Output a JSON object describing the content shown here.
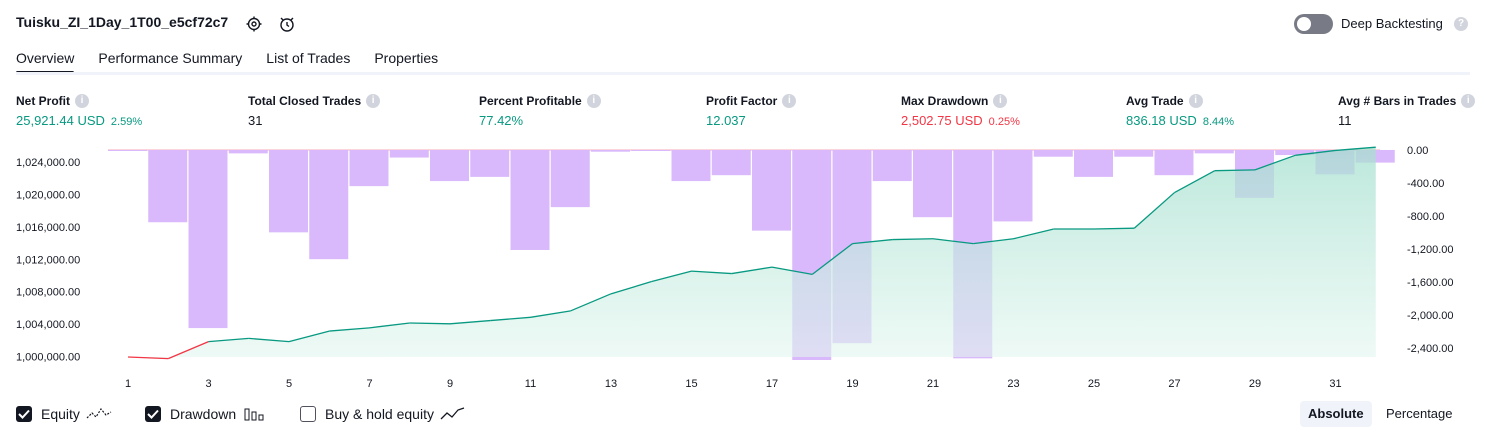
{
  "header": {
    "strategy_name": "Tuisku_ZI_1Day_1T00_e5cf72c7",
    "settings_icon": "gear-icon",
    "refresh_icon": "refresh-icon",
    "deep_backtesting_label": "Deep Backtesting",
    "deep_backtesting_on": false
  },
  "tabs": [
    "Overview",
    "Performance Summary",
    "List of Trades",
    "Properties"
  ],
  "active_tab": "Overview",
  "metrics": [
    {
      "label": "Net Profit",
      "value": "25,921.44 USD",
      "pct": "2.59%",
      "tone": "green"
    },
    {
      "label": "Total Closed Trades",
      "value": "31",
      "pct": "",
      "tone": "neutral"
    },
    {
      "label": "Percent Profitable",
      "value": "77.42%",
      "pct": "",
      "tone": "green"
    },
    {
      "label": "Profit Factor",
      "value": "12.037",
      "pct": "",
      "tone": "green"
    },
    {
      "label": "Max Drawdown",
      "value": "2,502.75 USD",
      "pct": "0.25%",
      "tone": "red"
    },
    {
      "label": "Avg Trade",
      "value": "836.18 USD",
      "pct": "8.44%",
      "tone": "green"
    },
    {
      "label": "Avg # Bars in Trades",
      "value": "11",
      "pct": "",
      "tone": "neutral"
    }
  ],
  "chart_data": {
    "type": "area",
    "x_ticks": [
      "1",
      "3",
      "5",
      "7",
      "9",
      "11",
      "13",
      "15",
      "17",
      "19",
      "21",
      "23",
      "25",
      "27",
      "29",
      "31"
    ],
    "left_axis": {
      "ticks": [
        "1,000,000.00",
        "1,004,000.00",
        "1,008,000.00",
        "1,012,000.00",
        "1,016,000.00",
        "1,020,000.00",
        "1,024,000.00"
      ],
      "ylim": [
        999000,
        1026000
      ]
    },
    "right_axis": {
      "ticks": [
        "0.00",
        "-400.00",
        "-800.00",
        "-1,200.00",
        "-1,600.00",
        "-2,000.00",
        "-2,400.00"
      ],
      "ylim": [
        -2600,
        0
      ]
    },
    "series": [
      {
        "name": "Equity",
        "x": [
          1,
          2,
          3,
          4,
          5,
          6,
          7,
          8,
          9,
          10,
          11,
          12,
          13,
          14,
          15,
          16,
          17,
          18,
          19,
          20,
          21,
          22,
          23,
          24,
          25,
          26,
          27,
          28,
          29,
          30,
          31,
          32
        ],
        "values": [
          1000000,
          999800,
          1001900,
          1002300,
          1001900,
          1003200,
          1003600,
          1004200,
          1004100,
          1004500,
          1004900,
          1005700,
          1007800,
          1009300,
          1010600,
          1010300,
          1011100,
          1010200,
          1014000,
          1014500,
          1014600,
          1014000,
          1014600,
          1015800,
          1015800,
          1015900,
          1020300,
          1023000,
          1023100,
          1024900,
          1025500,
          1025900
        ],
        "color": "#089981",
        "negative_color": "#f23645",
        "fill": "#d3f0e8"
      },
      {
        "name": "Drawdown",
        "x": [
          1,
          2,
          3,
          4,
          5,
          6,
          7,
          8,
          9,
          10,
          11,
          12,
          13,
          14,
          15,
          16,
          17,
          18,
          19,
          20,
          21,
          22,
          23,
          24,
          25,
          26,
          27,
          28,
          29,
          30,
          31,
          32
        ],
        "values": [
          -10,
          -860,
          -2120,
          -40,
          -980,
          -1300,
          -430,
          -90,
          -370,
          -320,
          -1190,
          -680,
          -20,
          -10,
          -370,
          -300,
          -960,
          -2500,
          -2300,
          -370,
          -800,
          -2480,
          -850,
          -80,
          -320,
          -80,
          -300,
          -40,
          -570,
          -60,
          -290,
          -150
        ],
        "color": "#d9b8fb"
      }
    ],
    "legend": [
      {
        "label": "Equity",
        "checked": true,
        "icon": "equity-line-icon"
      },
      {
        "label": "Drawdown",
        "checked": true,
        "icon": "drawdown-bars-icon"
      },
      {
        "label": "Buy & hold equity",
        "checked": false,
        "icon": "buy-hold-line-icon"
      }
    ]
  },
  "display_mode": {
    "options": [
      "Absolute",
      "Percentage"
    ],
    "active": "Absolute"
  }
}
